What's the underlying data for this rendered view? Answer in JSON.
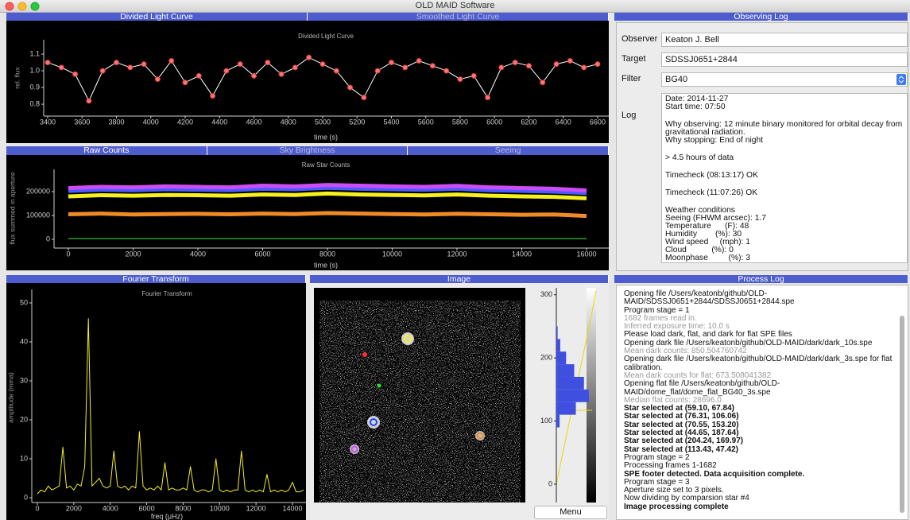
{
  "window": {
    "title": "OLD MAID Software"
  },
  "tabs": {
    "light_curve": [
      "Divided Light Curve",
      "Smoothed Light Curve"
    ],
    "counts": [
      "Raw Counts",
      "Sky Brightness",
      "Seeing"
    ],
    "fourier": [
      "Fourier Transform"
    ],
    "image": [
      "Image"
    ],
    "observing": [
      "Observing Log"
    ],
    "process": [
      "Process Log"
    ]
  },
  "chart_data": [
    {
      "type": "line",
      "title": "Divided Light Curve",
      "x_label": "time (s)",
      "y_label": "rel. flux",
      "x": [
        3400,
        3480,
        3560,
        3640,
        3720,
        3800,
        3880,
        3960,
        4040,
        4120,
        4200,
        4280,
        4360,
        4440,
        4520,
        4600,
        4680,
        4760,
        4840,
        4920,
        5000,
        5080,
        5160,
        5240,
        5320,
        5400,
        5480,
        5560,
        5640,
        5720,
        5800,
        5880,
        5960,
        6040,
        6120,
        6200,
        6280,
        6360,
        6440,
        6520,
        6600
      ],
      "values": [
        1.05,
        1.02,
        0.98,
        0.82,
        1.0,
        1.05,
        1.02,
        1.04,
        0.95,
        1.06,
        0.93,
        0.97,
        0.85,
        1.0,
        1.04,
        0.97,
        1.05,
        0.98,
        1.02,
        1.08,
        1.04,
        1.0,
        0.9,
        0.84,
        1.0,
        1.05,
        1.02,
        1.06,
        1.03,
        1.0,
        0.95,
        0.97,
        0.84,
        1.02,
        1.05,
        1.03,
        0.93,
        1.04,
        1.06,
        1.02,
        1.04
      ],
      "color": "#f27a7a",
      "line_color": "#ffffff",
      "marker": true,
      "xlim": [
        3377,
        6665
      ],
      "xticks": [
        3400,
        3600,
        3800,
        4000,
        4200,
        4400,
        4600,
        4800,
        5000,
        5200,
        5400,
        5600,
        5800,
        6000,
        6200,
        6400,
        6600
      ],
      "ylim": [
        0.729,
        1.186
      ],
      "yticks": [
        0.8,
        0.9,
        {
          "value": 1,
          "label": "1.0"
        },
        1.1
      ]
    },
    {
      "type": "line",
      "title": "Raw Star Counts",
      "x_label": "time (s)",
      "y_label": "flux summed in aperture",
      "x": [
        0,
        1000,
        2000,
        3000,
        4000,
        5000,
        6000,
        7000,
        8000,
        9000,
        10000,
        11000,
        12000,
        13000,
        14000,
        15000,
        16000
      ],
      "series": [
        {
          "color": "#2e9e2e",
          "values": [
            3000,
            3000,
            3000,
            3000,
            3000,
            3000,
            3000,
            3000,
            3000,
            3000,
            3000,
            3000,
            3000,
            3000,
            3000,
            3000,
            3000
          ]
        },
        {
          "color": "#f08a24",
          "values": [
            105000,
            108000,
            104000,
            106000,
            107000,
            105000,
            108000,
            106000,
            110000,
            108000,
            106000,
            104000,
            107000,
            105000,
            103000,
            104000,
            98000
          ]
        },
        {
          "color": "#f5f01e",
          "values": [
            180000,
            185000,
            183000,
            186000,
            185000,
            183000,
            188000,
            186000,
            192000,
            188000,
            186000,
            184000,
            188000,
            183000,
            180000,
            178000,
            172000
          ]
        },
        {
          "color": "#4a5cff",
          "values": [
            203000,
            208000,
            206000,
            210000,
            208000,
            206000,
            212000,
            210000,
            216000,
            212000,
            210000,
            208000,
            212000,
            206000,
            203000,
            200000,
            194000
          ]
        },
        {
          "color": "#cc4cf5",
          "values": [
            215000,
            220000,
            218000,
            222000,
            220000,
            218000,
            225000,
            222000,
            228000,
            225000,
            222000,
            220000,
            224000,
            218000,
            215000,
            212000,
            205000
          ]
        }
      ],
      "xlim": [
        -442,
        16687
      ],
      "xticks": [
        0,
        2000,
        4000,
        6000,
        8000,
        10000,
        12000,
        14000,
        16000
      ],
      "ylim": [
        -36700,
        293300
      ],
      "yticks": [
        0,
        100000,
        200000
      ]
    },
    {
      "type": "line",
      "title": "Fourier Transform",
      "x_label": "freq (μHz)",
      "y_label": "amplitude (mma)",
      "x": [
        0,
        200,
        400,
        600,
        800,
        1000,
        1200,
        1400,
        1600,
        1800,
        2000,
        2200,
        2400,
        2600,
        2800,
        3000,
        3200,
        3400,
        3600,
        3800,
        4000,
        4200,
        4400,
        4600,
        4800,
        5000,
        5200,
        5400,
        5600,
        5800,
        6000,
        6200,
        6400,
        6600,
        6800,
        7000,
        7200,
        7400,
        7600,
        7800,
        8000,
        8200,
        8400,
        8600,
        8800,
        9000,
        9200,
        9400,
        9600,
        9800,
        10000,
        10200,
        10400,
        10600,
        10800,
        11000,
        11200,
        11400,
        11600,
        11800,
        12000,
        12200,
        12400,
        12600,
        12800,
        13000,
        13200,
        13400,
        13600,
        13800,
        14000,
        14200,
        14400,
        14600
      ],
      "values": [
        1,
        2,
        1.5,
        3,
        2,
        2.5,
        3,
        13,
        2.5,
        3,
        2,
        3.5,
        3,
        8,
        46,
        3,
        4,
        5,
        3,
        2.5,
        3,
        12,
        3,
        2.5,
        3,
        2,
        3,
        2.5,
        17,
        3,
        2,
        2.5,
        2,
        3,
        2,
        9,
        2,
        2.5,
        2,
        2,
        2.5,
        2,
        8,
        2,
        1.5,
        2,
        2,
        1.5,
        2,
        10,
        2,
        1.5,
        2,
        1.5,
        2,
        2,
        12,
        2,
        1.5,
        2,
        1.5,
        2,
        1.5,
        6,
        1.5,
        2,
        1.5,
        2,
        1.5,
        2,
        4,
        1.5,
        1.5,
        2
      ],
      "line_color": "#f5f01e",
      "xlim": [
        -305,
        14741
      ],
      "xticks": [
        0,
        2000,
        4000,
        6000,
        8000,
        10000,
        12000,
        14000
      ],
      "ylim": [
        -1.22,
        53.47
      ],
      "yticks": [
        0,
        10,
        20,
        30,
        40,
        50
      ]
    },
    {
      "type": "histogram",
      "orientation": "horizontal",
      "color": "#3f4fe0",
      "bins": [
        90,
        110,
        130,
        150,
        170,
        190,
        210,
        230,
        250
      ],
      "values": [
        10,
        60,
        100,
        85,
        55,
        30,
        12,
        4
      ],
      "xlim": [
        0,
        110
      ],
      "ylim": [
        -29,
        311
      ],
      "yticks": [
        0,
        100,
        200,
        300
      ]
    }
  ],
  "image_panel": {
    "button": "Menu"
  },
  "observing_log": {
    "fields": [
      {
        "label": "Observer",
        "value": "Keaton J. Bell"
      },
      {
        "label": "Target",
        "value": "SDSSJ0651+2844"
      },
      {
        "label": "Filter",
        "value": "BG40"
      }
    ],
    "log_label": "Log",
    "log": [
      [
        "Date: 2014-11-27",
        "Start time: 07:50"
      ],
      [
        "Why observing: 12 minute binary monitored for orbital decay from gravitational radiation.",
        "Why stopping: End of night"
      ],
      [
        "> 4.5 hours of data"
      ],
      [
        "Timecheck (08:13:17) OK"
      ],
      [
        "Timecheck (11:07:26) OK"
      ],
      [
        "Weather conditions",
        "Seeing (FHWM arcsec): 1.7",
        "Temperature      (F): 48",
        "Humidity        (%): 30",
        "Wind speed     (mph): 1",
        "Cloud           (%): 0",
        "Moonphase         (%): 3"
      ]
    ]
  },
  "process_log": {
    "lines": [
      {
        "text": "Opening file /Users/keatonb/github/OLD-MAID/SDSSJ0651+2844/SDSSJ0651+2844.spe",
        "kind": "normal"
      },
      {
        "text": "Program stage = 1",
        "kind": "normal"
      },
      {
        "text": "1682 frames read in.",
        "kind": "muted"
      },
      {
        "text": "Inferred exposure time: 10.0 s",
        "kind": "muted"
      },
      {
        "text": "Please load dark, flat, and dark for flat SPE files",
        "kind": "normal"
      },
      {
        "text": "Opening dark file /Users/keatonb/github/OLD-MAID/dark/dark_10s.spe",
        "kind": "normal"
      },
      {
        "text": "Mean dark counts: 850.504760742",
        "kind": "muted"
      },
      {
        "text": "Opening dark file /Users/keatonb/github/OLD-MAID/dark/dark_3s.spe for flat calibration.",
        "kind": "normal"
      },
      {
        "text": "Mean dark counts for flat: 673.508041382",
        "kind": "muted"
      },
      {
        "text": "Opening flat file /Users/keatonb/github/OLD-MAID/dome_flat/dome_flat_BG40_3s.spe",
        "kind": "normal"
      },
      {
        "text": "Median flat counts: 28696.0",
        "kind": "muted"
      },
      {
        "text": "Star selected at (59.10, 67.84)",
        "kind": "bold"
      },
      {
        "text": "Star selected at (76.31, 106.06)",
        "kind": "bold"
      },
      {
        "text": "Star selected at (70.55, 153.20)",
        "kind": "bold"
      },
      {
        "text": "Star selected at (44.65, 187.64)",
        "kind": "bold"
      },
      {
        "text": "Star selected at (204.24, 169.97)",
        "kind": "bold"
      },
      {
        "text": "Star selected at (113.43, 47.42)",
        "kind": "bold"
      },
      {
        "text": "Program stage = 2",
        "kind": "normal"
      },
      {
        "text": "Processing frames 1-1682",
        "kind": "normal"
      },
      {
        "text": "SPE footer detected. Data acquisition complete.",
        "kind": "bold"
      },
      {
        "text": "Program stage = 3",
        "kind": "normal"
      },
      {
        "text": "Aperture size set to 3 pixels.",
        "kind": "normal"
      },
      {
        "text": "Now dividing by comparsion star #4",
        "kind": "normal"
      },
      {
        "text": "Image processing complete",
        "kind": "bold"
      }
    ]
  }
}
